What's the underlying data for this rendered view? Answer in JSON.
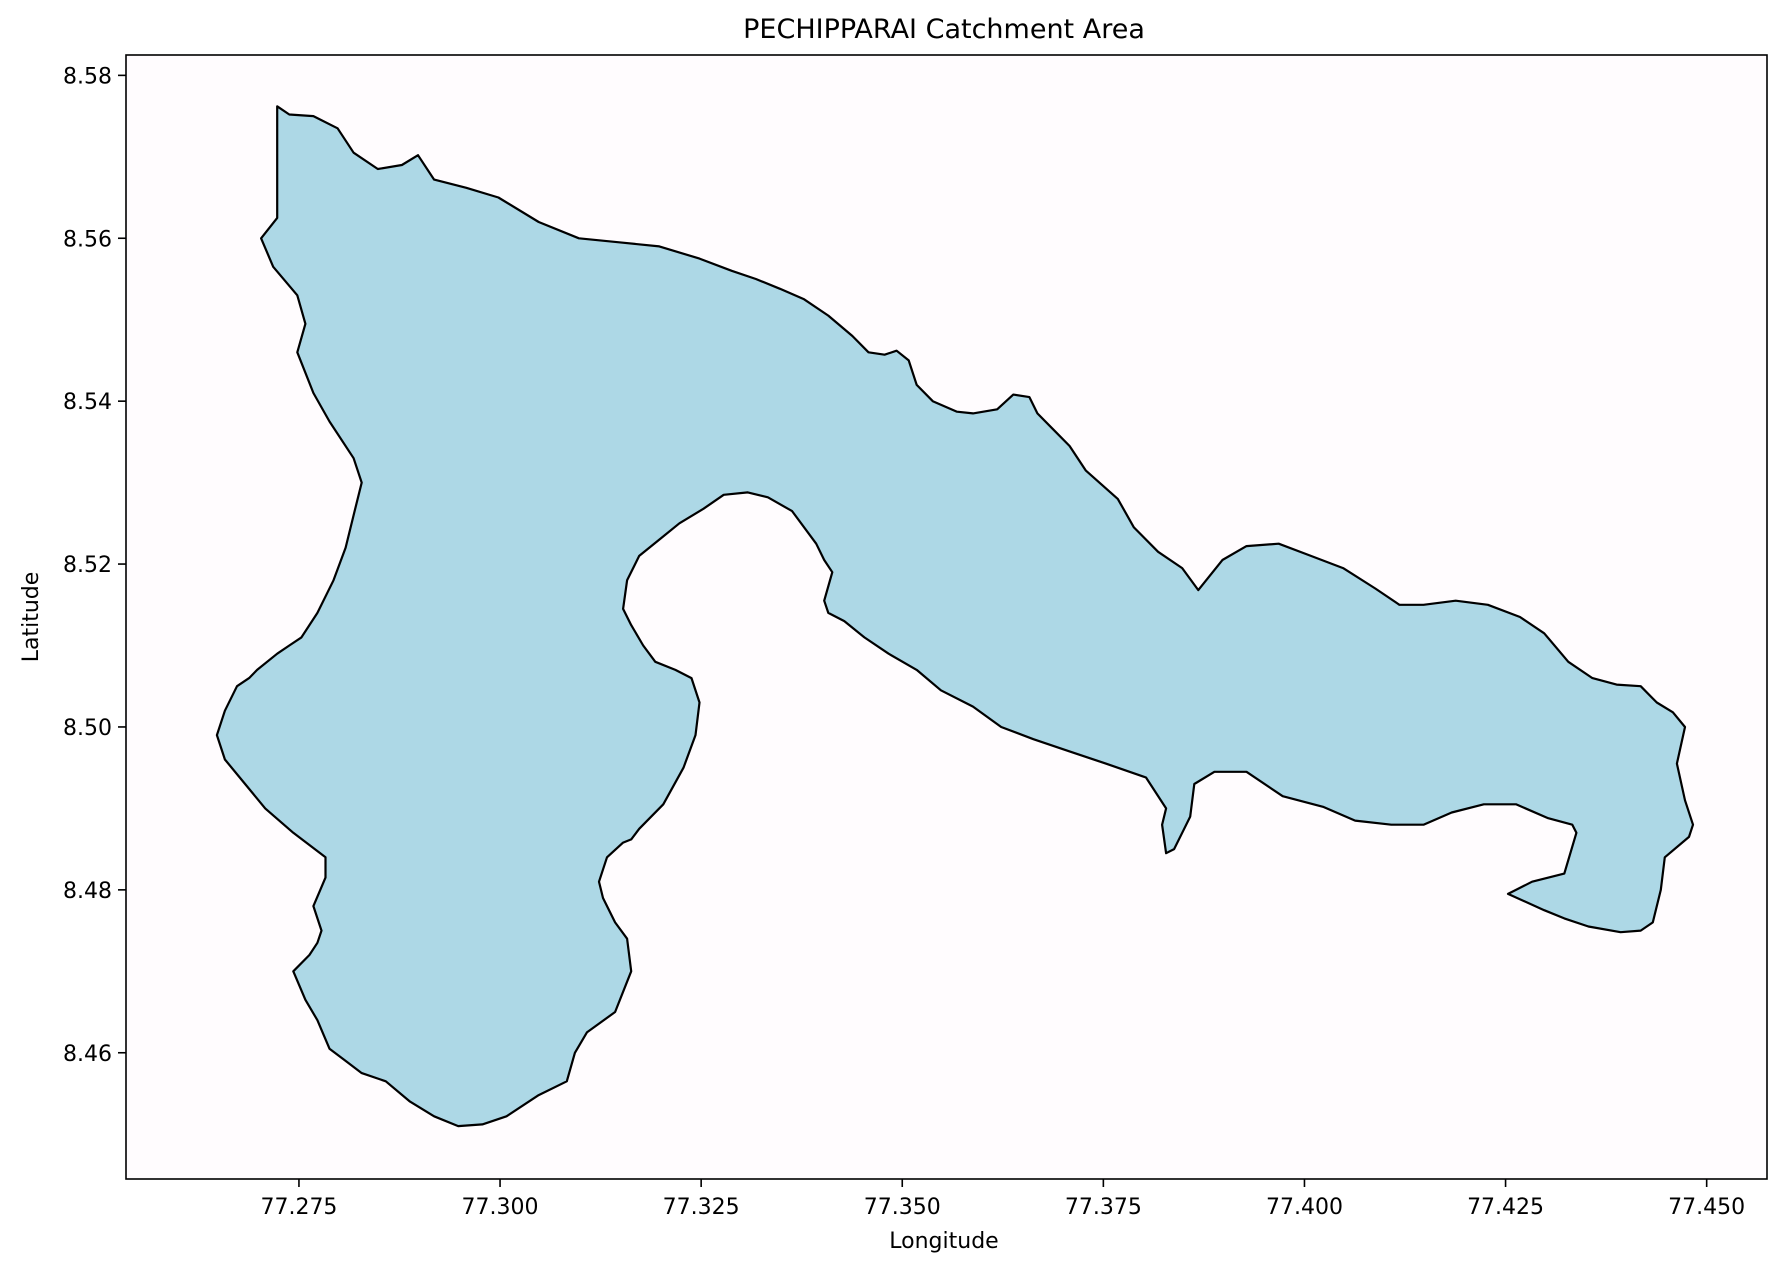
{
  "chart_data": {
    "type": "map",
    "title": "PECHIPPARAI Catchment Area",
    "xlabel": "Longitude",
    "ylabel": "Latitude",
    "xlim": [
      77.2535,
      77.4575
    ],
    "ylim": [
      8.4445,
      8.5825
    ],
    "xticks": [
      "77.275",
      "77.300",
      "77.325",
      "77.350",
      "77.375",
      "77.400",
      "77.425",
      "77.450"
    ],
    "yticks": [
      "8.46",
      "8.48",
      "8.50",
      "8.52",
      "8.54",
      "8.56",
      "8.58"
    ],
    "grid": false,
    "fill_color": "#add8e6",
    "edge_color": "#000000",
    "polygon": {
      "name": "PECHIPPARAI catchment boundary",
      "lon": [
        77.2723,
        77.2738,
        77.2768,
        77.2798,
        77.2818,
        77.2848,
        77.2878,
        77.2898,
        77.2918,
        77.2958,
        77.2998,
        77.3048,
        77.3098,
        77.3148,
        77.3198,
        77.3248,
        77.3288,
        77.3318,
        77.3348,
        77.3378,
        77.3408,
        77.3438,
        77.3458,
        77.3478,
        77.3493,
        77.3508,
        77.3518,
        77.3538,
        77.3568,
        77.3588,
        77.3618,
        77.3638,
        77.3658,
        77.3668,
        77.3688,
        77.3708,
        77.3728,
        77.3768,
        77.3788,
        77.3818,
        77.3848,
        77.3868,
        77.3898,
        77.3928,
        77.3968,
        77.4008,
        77.4048,
        77.4088,
        77.4118,
        77.4148,
        77.4188,
        77.4228,
        77.4268,
        77.4298,
        77.4328,
        77.4358,
        77.4388,
        77.4418,
        77.4438,
        77.4458,
        77.4473,
        77.4463,
        77.4473,
        77.4483,
        77.4478,
        77.4448,
        77.4443,
        77.4433,
        77.4418,
        77.4393,
        77.4353,
        77.4323,
        77.4298,
        77.4253,
        77.4283,
        77.4323,
        77.4338,
        77.4333,
        77.4303,
        77.4263,
        77.4223,
        77.4183,
        77.4148,
        77.4108,
        77.4063,
        77.4023,
        77.3973,
        77.3928,
        77.3888,
        77.3863,
        77.3858,
        77.3848,
        77.3838,
        77.3828,
        77.3823,
        77.3828,
        77.3803,
        77.3753,
        77.3708,
        77.3663,
        77.3623,
        77.3588,
        77.3548,
        77.3518,
        77.3483,
        77.3453,
        77.3428,
        77.3408,
        77.3403,
        77.3413,
        77.3403,
        77.3393,
        77.3363,
        77.3333,
        77.3308,
        77.3278,
        77.3253,
        77.3223,
        77.3198,
        77.3173,
        77.3158,
        77.3153,
        77.3163,
        77.3178,
        77.3193,
        77.3218,
        77.3238,
        77.3248,
        77.3243,
        77.3228,
        77.3203,
        77.3173,
        77.3163,
        77.3153,
        77.3133,
        77.3123,
        77.3128,
        77.3143,
        77.3158,
        77.3163,
        77.3143,
        77.3108,
        77.3093,
        77.3083,
        77.3048,
        77.3008,
        77.2978,
        77.2948,
        77.2918,
        77.2888,
        77.2858,
        77.2828,
        77.2808,
        77.2788,
        77.2773,
        77.2758,
        77.2743,
        77.2763,
        77.2773,
        77.2778,
        77.2768,
        77.2783,
        77.2783,
        77.2743,
        77.2708,
        77.2683,
        77.2658,
        77.2648,
        77.2658,
        77.2673,
        77.2688,
        77.2698,
        77.2723,
        77.2738,
        77.2753,
        77.2773,
        77.2793,
        77.2808,
        77.2818,
        77.2828,
        77.2818,
        77.2788,
        77.2768,
        77.2748,
        77.2758,
        77.2748,
        77.2718,
        77.2703,
        77.2723
      ],
      "lat": [
        8.5762,
        8.5752,
        8.575,
        8.5735,
        8.5705,
        8.5685,
        8.569,
        8.5702,
        8.5672,
        8.5662,
        8.565,
        8.562,
        8.56,
        8.5595,
        8.559,
        8.5575,
        8.556,
        8.555,
        8.5538,
        8.5525,
        8.5505,
        8.548,
        8.546,
        8.5457,
        8.5462,
        8.545,
        8.542,
        8.54,
        8.5387,
        8.5385,
        8.539,
        8.5408,
        8.5405,
        8.5385,
        8.5365,
        8.5345,
        8.5315,
        8.528,
        8.5245,
        8.5215,
        8.5195,
        8.5168,
        8.5205,
        8.5222,
        8.5225,
        8.521,
        8.5195,
        8.517,
        8.515,
        8.515,
        8.5155,
        8.515,
        8.5135,
        8.5115,
        8.508,
        8.506,
        8.5052,
        8.505,
        8.503,
        8.5018,
        8.5,
        8.4955,
        8.491,
        8.488,
        8.4865,
        8.484,
        8.48,
        8.476,
        8.475,
        8.4748,
        8.4755,
        8.4765,
        8.4775,
        8.4795,
        8.481,
        8.482,
        8.487,
        8.488,
        8.4888,
        8.4905,
        8.4905,
        8.4895,
        8.488,
        8.488,
        8.4885,
        8.4902,
        8.4915,
        8.4945,
        8.4945,
        8.493,
        8.489,
        8.487,
        8.485,
        8.4845,
        8.488,
        8.49,
        8.4938,
        8.4955,
        8.497,
        8.4985,
        8.5,
        8.5025,
        8.5045,
        8.507,
        8.509,
        8.511,
        8.513,
        8.514,
        8.5155,
        8.519,
        8.5205,
        8.5225,
        8.5265,
        8.5282,
        8.5288,
        8.5285,
        8.5268,
        8.525,
        8.523,
        8.521,
        8.518,
        8.5145,
        8.5125,
        8.51,
        8.508,
        8.507,
        8.506,
        8.503,
        8.499,
        8.495,
        8.4905,
        8.4875,
        8.4862,
        8.4858,
        8.484,
        8.481,
        8.479,
        8.476,
        8.474,
        8.47,
        8.465,
        8.4625,
        8.46,
        8.4565,
        8.4548,
        8.4522,
        8.4512,
        8.451,
        8.4522,
        8.454,
        8.4565,
        8.4575,
        8.459,
        8.4605,
        8.464,
        8.4665,
        8.47,
        8.472,
        8.4735,
        8.475,
        8.478,
        8.4815,
        8.484,
        8.487,
        8.49,
        8.493,
        8.496,
        8.499,
        8.502,
        8.505,
        8.506,
        8.507,
        8.509,
        8.51,
        8.511,
        8.514,
        8.518,
        8.522,
        8.526,
        8.53,
        8.533,
        8.5375,
        8.541,
        8.546,
        8.5495,
        8.553,
        8.5565,
        8.56,
        8.5625,
        8.5655,
        8.569,
        8.572,
        8.5762
      ]
    }
  }
}
